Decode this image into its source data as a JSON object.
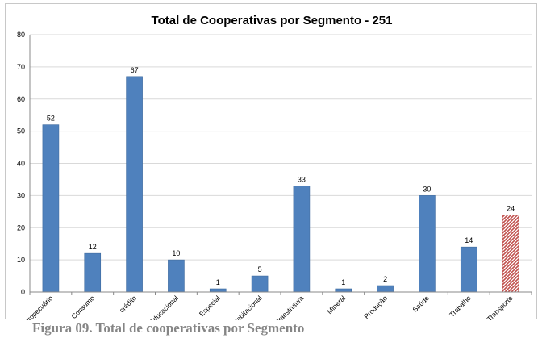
{
  "caption": "Figura 09. Total de cooperativas por Segmento",
  "colors": {
    "bar": "#4f81bd",
    "bar_stroke": "#3d6a9e",
    "highlight_bar": "#c0504d",
    "grid": "#d9d9d9",
    "axis": "#888888"
  },
  "chart_data": {
    "type": "bar",
    "title": "Total de Cooperativas por Segmento - 251",
    "xlabel": "",
    "ylabel": "",
    "ylim": [
      0,
      80
    ],
    "yticks": [
      0,
      10,
      20,
      30,
      40,
      50,
      60,
      70,
      80
    ],
    "grid": true,
    "legend": "none",
    "categories": [
      "Agropecuário",
      "Consumo",
      "crédito",
      "Educacional",
      "Especial",
      "Habitacional",
      "Infraestrutura",
      "Mineral",
      "Produção",
      "Saúde",
      "Trabalho",
      "Transporte"
    ],
    "values": [
      52,
      12,
      67,
      10,
      1,
      5,
      33,
      1,
      2,
      30,
      14,
      24
    ],
    "highlighted_category": "Transporte",
    "highlight_pattern": "hatched"
  }
}
